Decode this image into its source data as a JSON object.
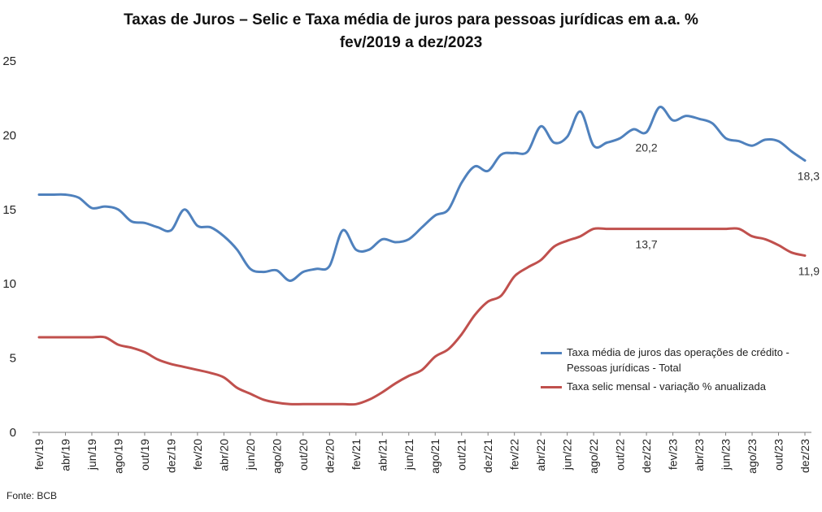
{
  "title_line1": "Taxas de Juros – Selic e Taxa média de juros para pessoas jurídicas em a.a. %",
  "title_line2": "fev/2019 a dez/2023",
  "source": "Fonte: BCB",
  "colors": {
    "blue": "#4f81bd",
    "red": "#c0504d",
    "axis": "#7f7f7f"
  },
  "chart_data": {
    "type": "line",
    "title": "Taxas de Juros – Selic e Taxa média de juros para pessoas jurídicas em a.a. %",
    "subtitle": "fev/2019 a dez/2023",
    "xlabel": "",
    "ylabel": "",
    "ylim": [
      0,
      25
    ],
    "yticks": [
      0,
      5,
      10,
      15,
      20,
      25
    ],
    "grid": false,
    "legend_position": "right-middle",
    "x": [
      "fev/19",
      "mar/19",
      "abr/19",
      "mai/19",
      "jun/19",
      "jul/19",
      "ago/19",
      "set/19",
      "out/19",
      "nov/19",
      "dez/19",
      "jan/20",
      "fev/20",
      "mar/20",
      "abr/20",
      "mai/20",
      "jun/20",
      "jul/20",
      "ago/20",
      "set/20",
      "out/20",
      "nov/20",
      "dez/20",
      "jan/21",
      "fev/21",
      "mar/21",
      "abr/21",
      "mai/21",
      "jun/21",
      "jul/21",
      "ago/21",
      "set/21",
      "out/21",
      "nov/21",
      "dez/21",
      "jan/22",
      "fev/22",
      "mar/22",
      "abr/22",
      "mai/22",
      "jun/22",
      "jul/22",
      "ago/22",
      "set/22",
      "out/22",
      "nov/22",
      "dez/22",
      "jan/23",
      "fev/23",
      "mar/23",
      "abr/23",
      "mai/23",
      "jun/23",
      "jul/23",
      "ago/23",
      "set/23",
      "out/23",
      "nov/23",
      "dez/23"
    ],
    "xtick_labels": [
      "fev/19",
      "abr/19",
      "jun/19",
      "ago/19",
      "out/19",
      "dez/19",
      "fev/20",
      "abr/20",
      "jun/20",
      "ago/20",
      "out/20",
      "dez/20",
      "fev/21",
      "abr/21",
      "jun/21",
      "ago/21",
      "out/21",
      "dez/21",
      "fev/22",
      "abr/22",
      "jun/22",
      "ago/22",
      "out/22",
      "dez/22",
      "fev/23",
      "abr/23",
      "jun/23",
      "ago/23",
      "out/23",
      "dez/23"
    ],
    "series": [
      {
        "name": "Taxa média de juros das operações de crédito - Pessoas jurídicas - Total",
        "color": "#4f81bd",
        "values": [
          16.0,
          16.0,
          16.0,
          15.8,
          15.1,
          15.2,
          15.0,
          14.2,
          14.1,
          13.8,
          13.6,
          15.0,
          13.9,
          13.8,
          13.2,
          12.3,
          11.0,
          10.8,
          10.9,
          10.2,
          10.8,
          11.0,
          11.2,
          13.6,
          12.3,
          12.3,
          13.0,
          12.8,
          13.0,
          13.8,
          14.6,
          15.0,
          16.8,
          17.9,
          17.6,
          18.7,
          18.8,
          18.9,
          20.6,
          19.5,
          19.9,
          21.6,
          19.3,
          19.5,
          19.8,
          20.4,
          20.2,
          21.9,
          21.0,
          21.3,
          21.1,
          20.8,
          19.8,
          19.6,
          19.3,
          19.7,
          19.6,
          18.9,
          18.3
        ]
      },
      {
        "name": "Taxa selic mensal - variação % anualizada",
        "color": "#c0504d",
        "values": [
          6.4,
          6.4,
          6.4,
          6.4,
          6.4,
          6.4,
          5.9,
          5.7,
          5.4,
          4.9,
          4.6,
          4.4,
          4.2,
          4.0,
          3.7,
          3.0,
          2.6,
          2.2,
          2.0,
          1.9,
          1.9,
          1.9,
          1.9,
          1.9,
          1.9,
          2.2,
          2.7,
          3.3,
          3.8,
          4.2,
          5.1,
          5.6,
          6.6,
          7.9,
          8.8,
          9.2,
          10.5,
          11.1,
          11.6,
          12.5,
          12.9,
          13.2,
          13.7,
          13.7,
          13.7,
          13.7,
          13.7,
          13.7,
          13.7,
          13.7,
          13.7,
          13.7,
          13.7,
          13.7,
          13.2,
          13.0,
          12.6,
          12.1,
          11.9
        ]
      }
    ],
    "data_labels": [
      {
        "series": 0,
        "index": 46,
        "text": "20,2"
      },
      {
        "series": 0,
        "index": 58,
        "text": "18,3"
      },
      {
        "series": 1,
        "index": 46,
        "text": "13,7"
      },
      {
        "series": 1,
        "index": 58,
        "text": "11,9"
      }
    ]
  }
}
